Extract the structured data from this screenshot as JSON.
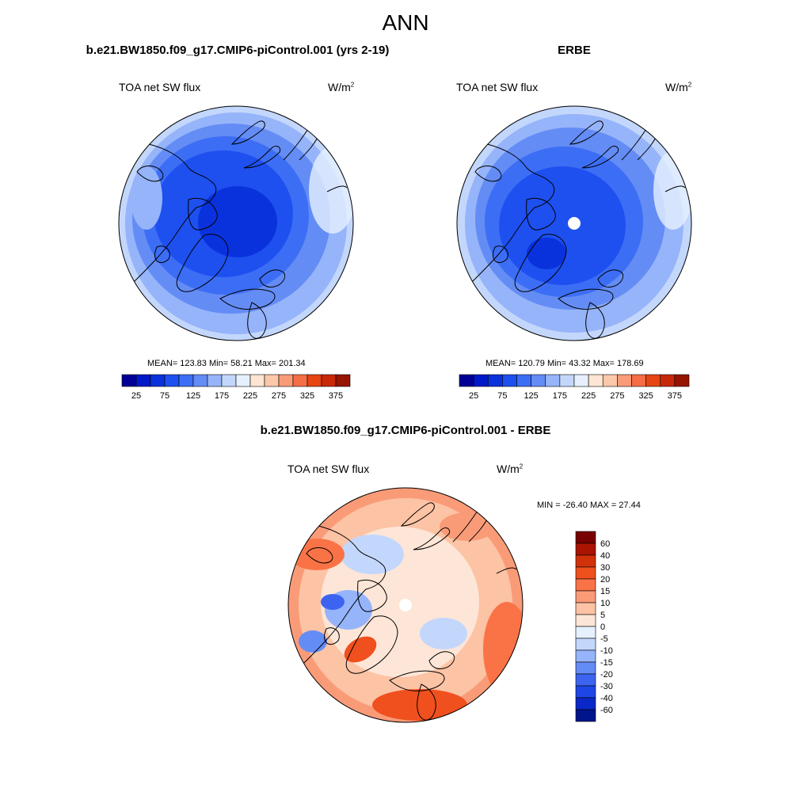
{
  "figure": {
    "season": "ANN"
  },
  "panels": [
    {
      "title": "b.e21.BW1850.f09_g17.CMIP6-piControl.001 (yrs 2-19)",
      "variable": "TOA net SW flux",
      "units_base": "W/m",
      "units_exp": "2",
      "stats": "MEAN= 123.83  Min=  58.21  Max= 201.34"
    },
    {
      "title": "ERBE",
      "variable": "TOA net SW flux",
      "units_base": "W/m",
      "units_exp": "2",
      "stats": "MEAN= 120.79  Min=  43.32  Max= 178.69"
    },
    {
      "title": "b.e21.BW1850.f09_g17.CMIP6-piControl.001 - ERBE",
      "variable": "TOA net SW flux",
      "units_base": "W/m",
      "units_exp": "2",
      "stats": "MIN = -26.40 MAX =  27.44"
    }
  ],
  "chart_data": [
    {
      "type": "heatmap",
      "projection": "north polar stereographic",
      "title": "b.e21.BW1850.f09_g17.CMIP6-piControl.001 (yrs 2-19)",
      "variable": "TOA net SW flux",
      "units": "W/m^2",
      "mean": 123.83,
      "min": 58.21,
      "max": 201.34,
      "colorbar": {
        "orientation": "horizontal",
        "levels": [
          25,
          50,
          75,
          100,
          125,
          150,
          175,
          200,
          225,
          250,
          275,
          300,
          325,
          350,
          375
        ],
        "tick_labels": [
          "25",
          "75",
          "125",
          "175",
          "225",
          "275",
          "325",
          "375"
        ],
        "colors": [
          "#000096",
          "#0019c8",
          "#0a32dc",
          "#1e50f0",
          "#3c6ef5",
          "#648cf5",
          "#96b4fa",
          "#c3d7fc",
          "#e6f0ff",
          "#ffe6d2",
          "#fcc8aa",
          "#fa9b78",
          "#f56e46",
          "#e64614",
          "#c8280a",
          "#961400"
        ]
      }
    },
    {
      "type": "heatmap",
      "projection": "north polar stereographic",
      "title": "ERBE",
      "variable": "TOA net SW flux",
      "units": "W/m^2",
      "mean": 120.79,
      "min": 43.32,
      "max": 178.69,
      "colorbar": {
        "orientation": "horizontal",
        "levels": [
          25,
          50,
          75,
          100,
          125,
          150,
          175,
          200,
          225,
          250,
          275,
          300,
          325,
          350,
          375
        ],
        "tick_labels": [
          "25",
          "75",
          "125",
          "175",
          "225",
          "275",
          "325",
          "375"
        ],
        "colors": [
          "#000096",
          "#0019c8",
          "#0a32dc",
          "#1e50f0",
          "#3c6ef5",
          "#648cf5",
          "#96b4fa",
          "#c3d7fc",
          "#e6f0ff",
          "#ffe6d2",
          "#fcc8aa",
          "#fa9b78",
          "#f56e46",
          "#e64614",
          "#c8280a",
          "#961400"
        ]
      }
    },
    {
      "type": "heatmap",
      "projection": "north polar stereographic",
      "title": "b.e21.BW1850.f09_g17.CMIP6-piControl.001 - ERBE",
      "variable": "TOA net SW flux",
      "units": "W/m^2",
      "min": -26.4,
      "max": 27.44,
      "colorbar": {
        "orientation": "vertical",
        "levels": [
          60,
          40,
          30,
          20,
          15,
          10,
          5,
          0,
          -5,
          -10,
          -15,
          -20,
          -30,
          -40,
          -60
        ],
        "tick_labels": [
          "60",
          "40",
          "30",
          "20",
          "15",
          "10",
          "5",
          "0",
          "-5",
          "-10",
          "-15",
          "-20",
          "-30",
          "-40",
          "-60"
        ],
        "colors": [
          "#780000",
          "#aa1400",
          "#d2320a",
          "#f0501e",
          "#fa7346",
          "#fa9b78",
          "#fcc3a5",
          "#fde6d7",
          "#e6f0ff",
          "#c3d7fc",
          "#96b4fa",
          "#648cf5",
          "#3c64f0",
          "#1e46e6",
          "#0a28c8",
          "#00148c"
        ]
      }
    }
  ]
}
